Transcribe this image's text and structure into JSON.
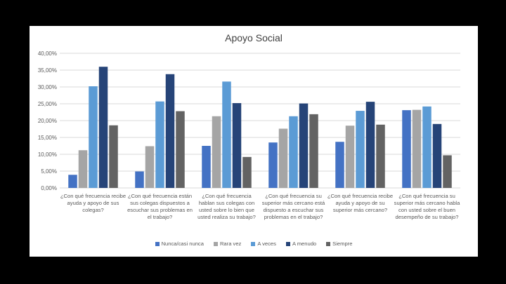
{
  "chart_data": {
    "type": "bar",
    "title": "Apoyo Social",
    "xlabel": "",
    "ylabel": "",
    "ylim": [
      0,
      40
    ],
    "yticks": [
      "0,00%",
      "5,00%",
      "10,00%",
      "15,00%",
      "20,00%",
      "25,00%",
      "30,00%",
      "35,00%",
      "40,00%"
    ],
    "grid": true,
    "legend_position": "bottom",
    "categories": [
      "¿Con qué frecuencia recibe ayuda y apoyo de sus colegas?",
      "¿Con qué frecuencia están sus colegas dispuestos a escuchar sus problemas en el trabajo?",
      "¿Con qué frecuencia hablan sus colegas con usted sobre lo bien que usted realiza su trabajo?",
      "¿Con qué frecuencia su superior más cercano está dispuesto a escuchar sus problemas en el trabajo?",
      "¿Con qué frecuencia recibe ayuda y apoyo de su superior más cercano?",
      "¿Con qué frecuencia su superior más cercano habla con usted sobre el buen desempeño de su trabajo?"
    ],
    "series": [
      {
        "name": "Nunca/casi nunca",
        "color": "#4472c4",
        "values": [
          3.9,
          4.9,
          12.5,
          13.5,
          13.7,
          23.1
        ]
      },
      {
        "name": "Rara vez",
        "color": "#a5a5a5",
        "values": [
          11.2,
          12.4,
          21.3,
          17.6,
          18.5,
          23.2
        ]
      },
      {
        "name": "A veces",
        "color": "#5b9bd5",
        "values": [
          30.2,
          25.7,
          31.6,
          21.3,
          22.9,
          24.2
        ]
      },
      {
        "name": "A menudo",
        "color": "#264478",
        "values": [
          36.0,
          33.8,
          25.2,
          25.1,
          25.6,
          19.0
        ]
      },
      {
        "name": "Siempre",
        "color": "#636363",
        "values": [
          18.6,
          22.8,
          9.2,
          21.9,
          18.8,
          9.7
        ]
      }
    ]
  }
}
